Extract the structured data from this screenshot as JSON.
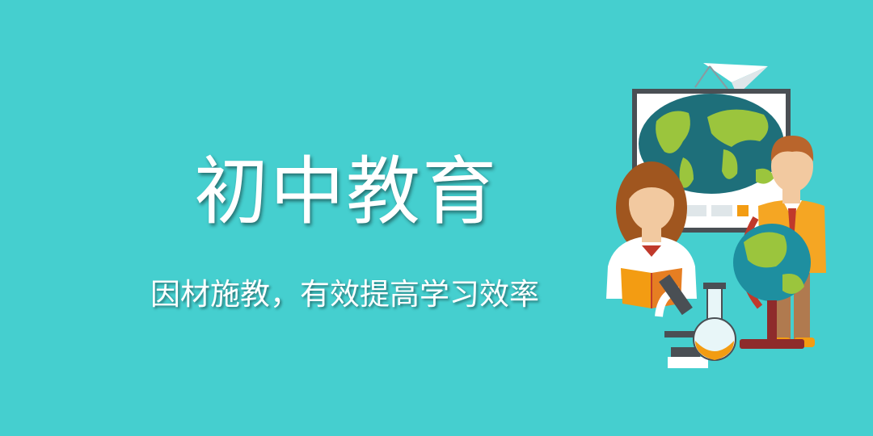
{
  "banner": {
    "title": "初中教育",
    "subtitle": "因材施教，有效提高学习效率",
    "background_color": "#45cfcf",
    "illustration_items": [
      "world-map-board-icon",
      "paper-plane-icon",
      "girl-student-icon",
      "boy-student-icon",
      "globe-icon",
      "microscope-icon",
      "flask-icon",
      "book-icon"
    ]
  }
}
